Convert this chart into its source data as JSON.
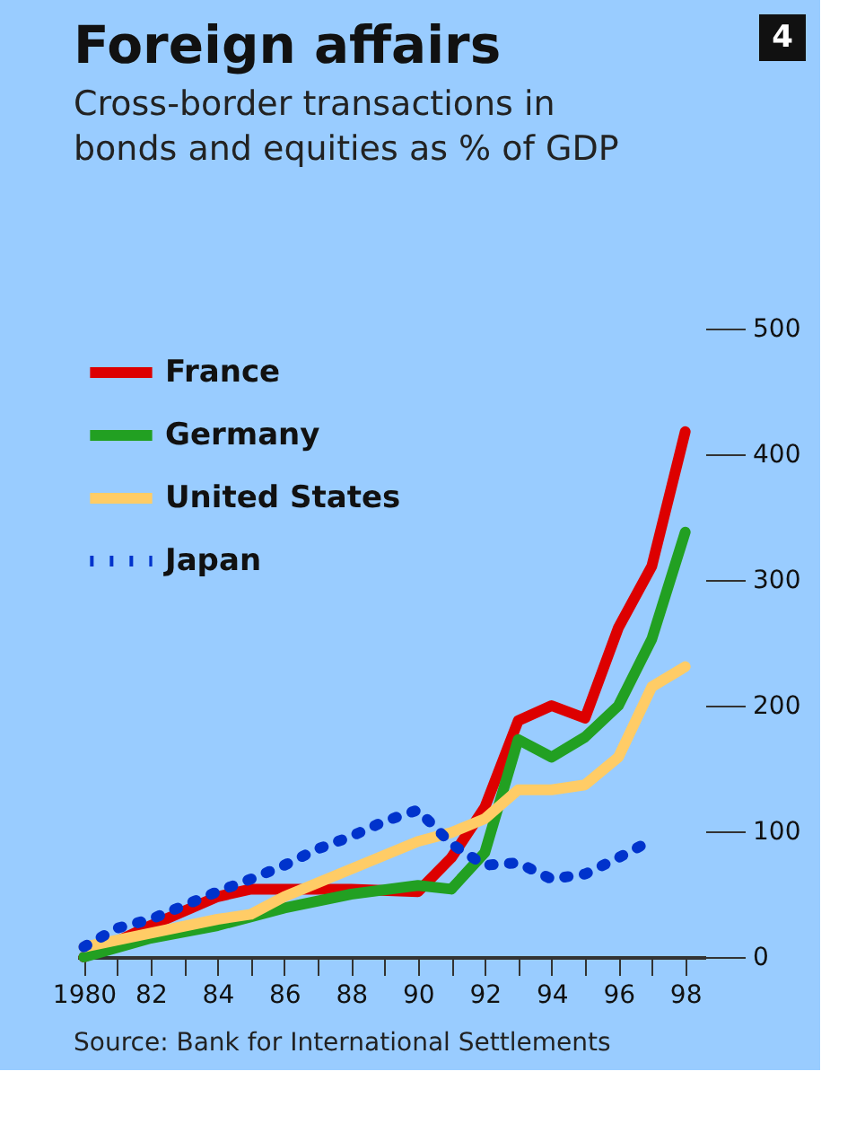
{
  "chart_data": {
    "type": "line",
    "title": "Foreign affairs",
    "subtitle": "Cross-border transactions in bonds and equities as % of GDP",
    "series": [
      {
        "name": "France",
        "color": "#dd0000",
        "x": [
          1980,
          1982,
          1984,
          1985,
          1986,
          1988,
          1990,
          1991,
          1992,
          1993,
          1994,
          1995,
          1996,
          1997,
          1998
        ],
        "values": [
          0,
          25,
          48,
          54,
          54,
          54,
          52,
          79,
          119,
          188,
          200,
          190,
          262,
          311,
          418
        ]
      },
      {
        "name": "Germany",
        "color": "#22a022",
        "x": [
          1980,
          1982,
          1984,
          1986,
          1988,
          1990,
          1991,
          1992,
          1993,
          1994,
          1995,
          1996,
          1997,
          1998
        ],
        "values": [
          0,
          15,
          25,
          39,
          50,
          57,
          54,
          83,
          173,
          159,
          175,
          200,
          253,
          338
        ]
      },
      {
        "name": "United States",
        "color": "#ffcc66",
        "x": [
          1980,
          1982,
          1984,
          1985,
          1986,
          1988,
          1990,
          1991,
          1992,
          1993,
          1994,
          1995,
          1996,
          1997,
          1998
        ],
        "values": [
          8,
          19,
          30,
          34,
          48,
          70,
          92,
          99,
          110,
          133,
          133,
          137,
          159,
          215,
          231
        ]
      },
      {
        "name": "Japan",
        "color": "#0033cc",
        "line_style": "dotted",
        "x": [
          1980,
          1981,
          1982,
          1983,
          1984,
          1985,
          1986,
          1987,
          1988,
          1989,
          1990,
          1991,
          1992,
          1993,
          1994,
          1995,
          1996,
          1997
        ],
        "values": [
          8,
          23,
          30,
          41,
          52,
          62,
          73,
          86,
          96,
          108,
          117,
          90,
          73,
          75,
          62,
          66,
          79,
          93
        ]
      }
    ],
    "xlim": [
      1979.8,
      1998.6
    ],
    "xticks": [
      {
        "value": 1980,
        "label": "1980"
      },
      {
        "value": 1981,
        "label": null
      },
      {
        "value": 1982,
        "label": "82"
      },
      {
        "value": 1983,
        "label": null
      },
      {
        "value": 1984,
        "label": "84"
      },
      {
        "value": 1985,
        "label": null
      },
      {
        "value": 1986,
        "label": "86"
      },
      {
        "value": 1987,
        "label": null
      },
      {
        "value": 1988,
        "label": "88"
      },
      {
        "value": 1989,
        "label": null
      },
      {
        "value": 1990,
        "label": "90"
      },
      {
        "value": 1991,
        "label": null
      },
      {
        "value": 1992,
        "label": "92"
      },
      {
        "value": 1993,
        "label": null
      },
      {
        "value": 1994,
        "label": "94"
      },
      {
        "value": 1995,
        "label": null
      },
      {
        "value": 1996,
        "label": "96"
      },
      {
        "value": 1997,
        "label": null
      },
      {
        "value": 1998,
        "label": "98"
      }
    ],
    "ylim": [
      0,
      500
    ],
    "yticks": [
      0,
      100,
      200,
      300,
      400,
      500
    ],
    "legend": "top left",
    "grid": false,
    "line_style": "solid",
    "annotations": [
      "4",
      "Source: Bank for International Settlements"
    ]
  }
}
